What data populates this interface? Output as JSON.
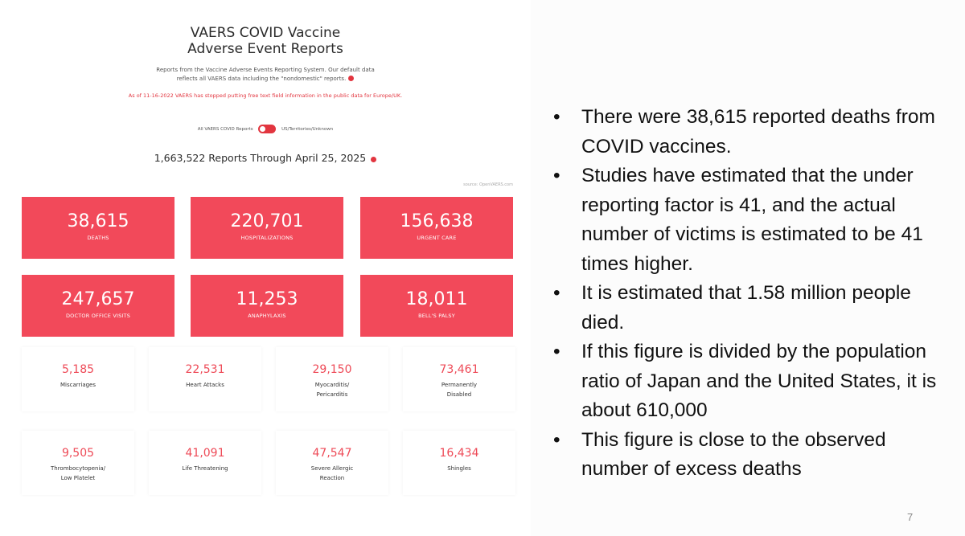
{
  "vaers": {
    "title_line1": "VAERS COVID Vaccine",
    "title_line2": "Adverse Event Reports",
    "description_line1": "Reports from the Vaccine Adverse Events Reporting System. Our default data",
    "description_line2": "reflects all VAERS data including the \"nondomestic\" reports.",
    "notice": "As of 11-16-2022 VAERS has stopped putting free text field information in the public data for Europe/UK.",
    "toggle_left_label": "All VAERS COVID Reports",
    "toggle_right_label": "US/Territories/Unknown",
    "reports_line": "1,663,522 Reports Through April 25, 2025",
    "source": "source: OpenVAERS.com",
    "accent_color": "#f2495a",
    "primary_stats": [
      {
        "value": "38,615",
        "label": "DEATHS"
      },
      {
        "value": "220,701",
        "label": "HOSPITALIZATIONS"
      },
      {
        "value": "156,638",
        "label": "URGENT CARE"
      },
      {
        "value": "247,657",
        "label": "DOCTOR OFFICE VISITS"
      },
      {
        "value": "11,253",
        "label": "ANAPHYLAXIS"
      },
      {
        "value": "18,011",
        "label": "BELL'S PALSY"
      }
    ],
    "secondary_stats": [
      {
        "value": "5,185",
        "label": "Miscarriages"
      },
      {
        "value": "22,531",
        "label": "Heart Attacks"
      },
      {
        "value": "29,150",
        "label": "Myocarditis/\nPericarditis"
      },
      {
        "value": "73,461",
        "label": "Permanently\nDisabled"
      },
      {
        "value": "9,505",
        "label": "Thrombocytopenia/\nLow Platelet"
      },
      {
        "value": "41,091",
        "label": "Life Threatening"
      },
      {
        "value": "47,547",
        "label": "Severe Allergic\nReaction"
      },
      {
        "value": "16,434",
        "label": "Shingles"
      }
    ]
  },
  "bullets": [
    "There were 38,615 reported deaths from COVID vaccines.",
    "Studies have estimated that the under reporting factor is 41, and the actual number of victims is estimated to be 41 times higher.",
    "It is estimated that 1.58 million people died.",
    "If this figure is divided by the population ratio of Japan and the United States, it is about 610,000",
    "This figure is close to the observed number of excess deaths"
  ],
  "page_number": "7"
}
